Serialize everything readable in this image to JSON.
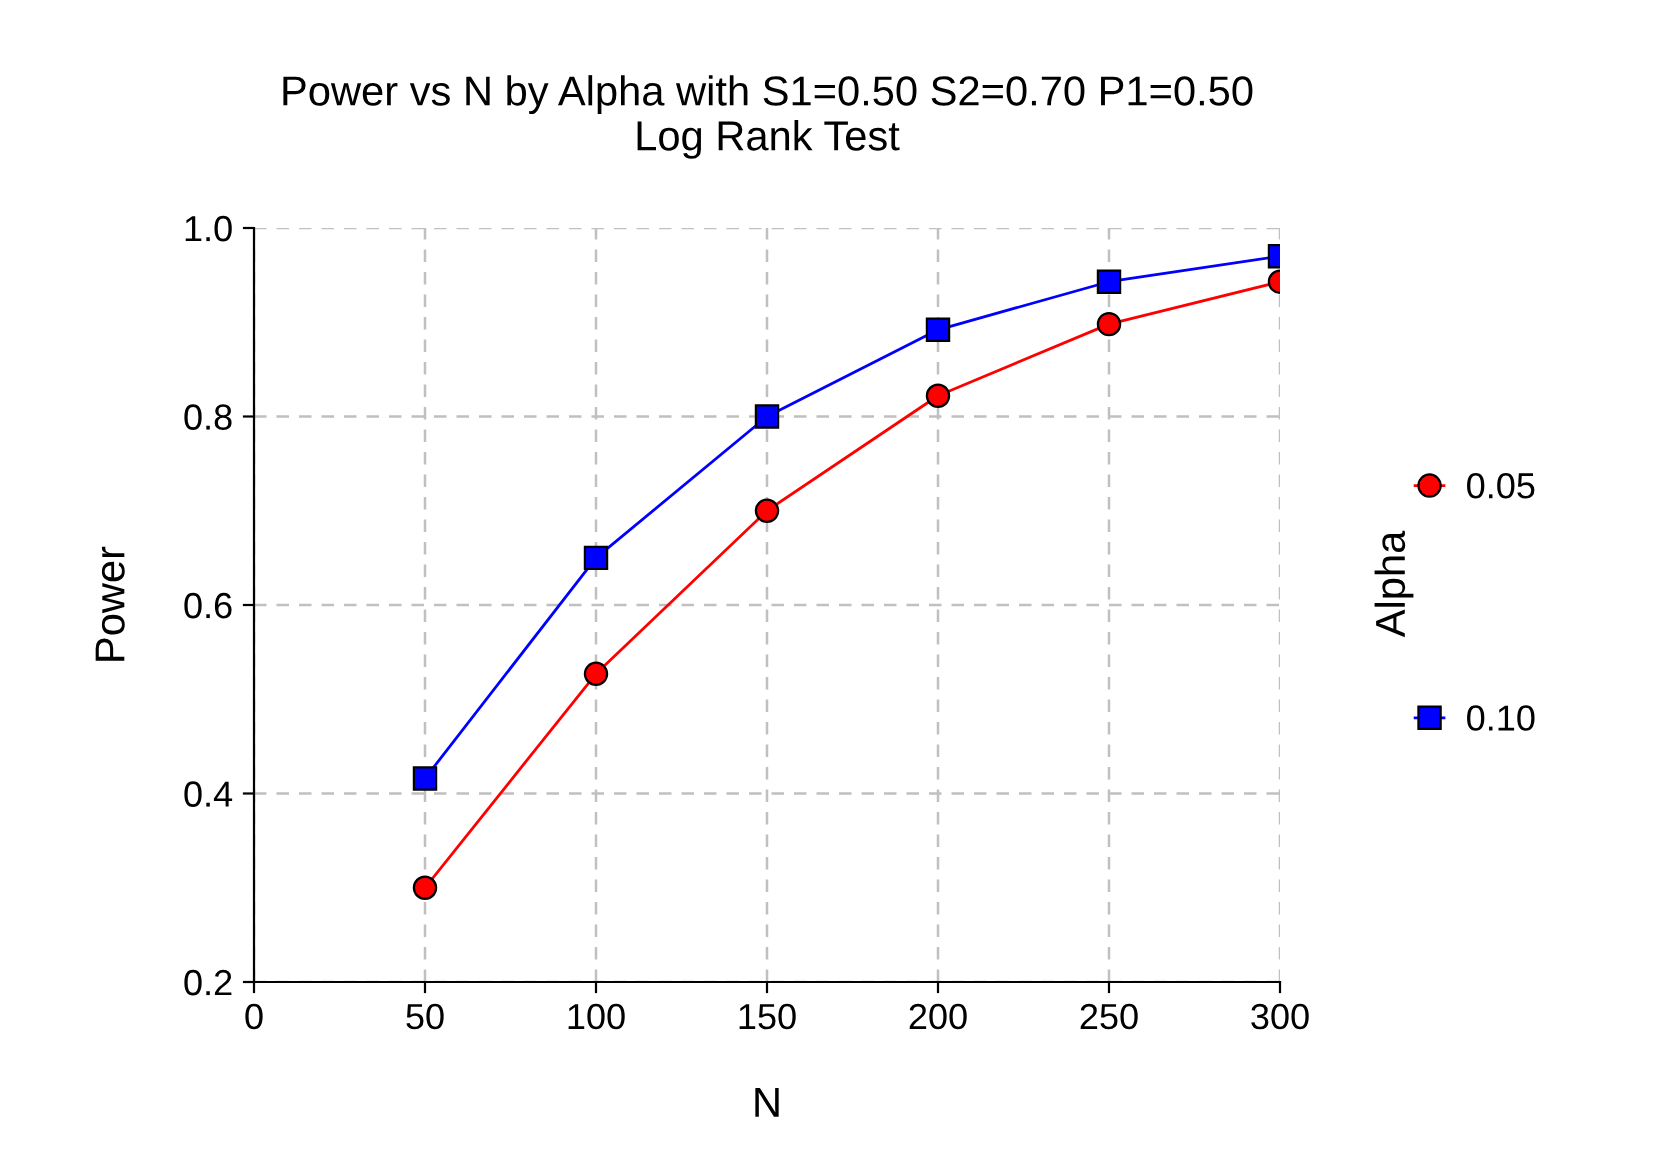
{
  "chart_data": {
    "type": "line",
    "title": "Power vs N by Alpha with S1=0.50 S2=0.70 P1=0.50\nLog Rank Test",
    "xlabel": "N",
    "ylabel": "Power",
    "legend_title": "Alpha",
    "x": [
      50,
      100,
      150,
      200,
      250,
      300
    ],
    "series": [
      {
        "name": "0.05",
        "color": "#ff0000",
        "marker": "circle",
        "values": [
          0.3,
          0.527,
          0.7,
          0.822,
          0.898,
          0.943
        ]
      },
      {
        "name": "0.10",
        "color": "#0000ff",
        "marker": "square",
        "values": [
          0.416,
          0.65,
          0.8,
          0.892,
          0.943,
          0.97
        ]
      }
    ],
    "xlim": [
      0,
      300
    ],
    "xticks": [
      0,
      50,
      100,
      150,
      200,
      250,
      300
    ],
    "ylim": [
      0.2,
      1.0
    ],
    "yticks": [
      {
        "value": 0.2,
        "label": "0.2"
      },
      {
        "value": 0.4,
        "label": "0.4"
      },
      {
        "value": 0.6,
        "label": "0.6"
      },
      {
        "value": 0.8,
        "label": "0.8"
      },
      {
        "value": 1.0,
        "label": "1.0"
      }
    ],
    "grid": true,
    "legend": "right",
    "line_style": "solid"
  }
}
